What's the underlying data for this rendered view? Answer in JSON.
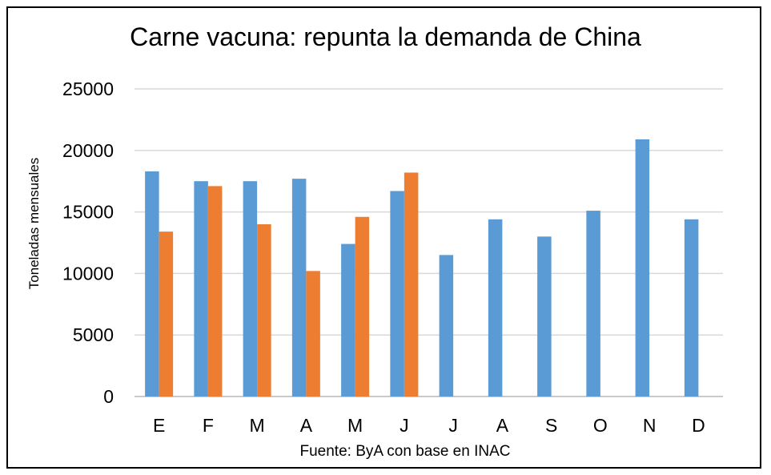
{
  "chart_data": {
    "type": "bar",
    "title": "Carne vacuna: repunta la demanda de China",
    "ylabel": "Toneladas mensuales",
    "xlabel": "",
    "source": "Fuente: ByA con base en INAC",
    "categories": [
      "E",
      "F",
      "M",
      "A",
      "M",
      "J",
      "J",
      "A",
      "S",
      "O",
      "N",
      "D"
    ],
    "series": [
      {
        "color": "#5B9BD5",
        "values": [
          18300,
          17500,
          17500,
          17700,
          12400,
          16700,
          11500,
          14400,
          13000,
          15100,
          20900,
          14400
        ]
      },
      {
        "color": "#ED7D31",
        "values": [
          13400,
          17100,
          14000,
          10200,
          14600,
          18200,
          null,
          null,
          null,
          null,
          null,
          null
        ]
      }
    ],
    "ylim": [
      0,
      25000
    ],
    "yticks": [
      0,
      5000,
      10000,
      15000,
      20000,
      25000
    ],
    "grid": true,
    "legend": "none"
  }
}
